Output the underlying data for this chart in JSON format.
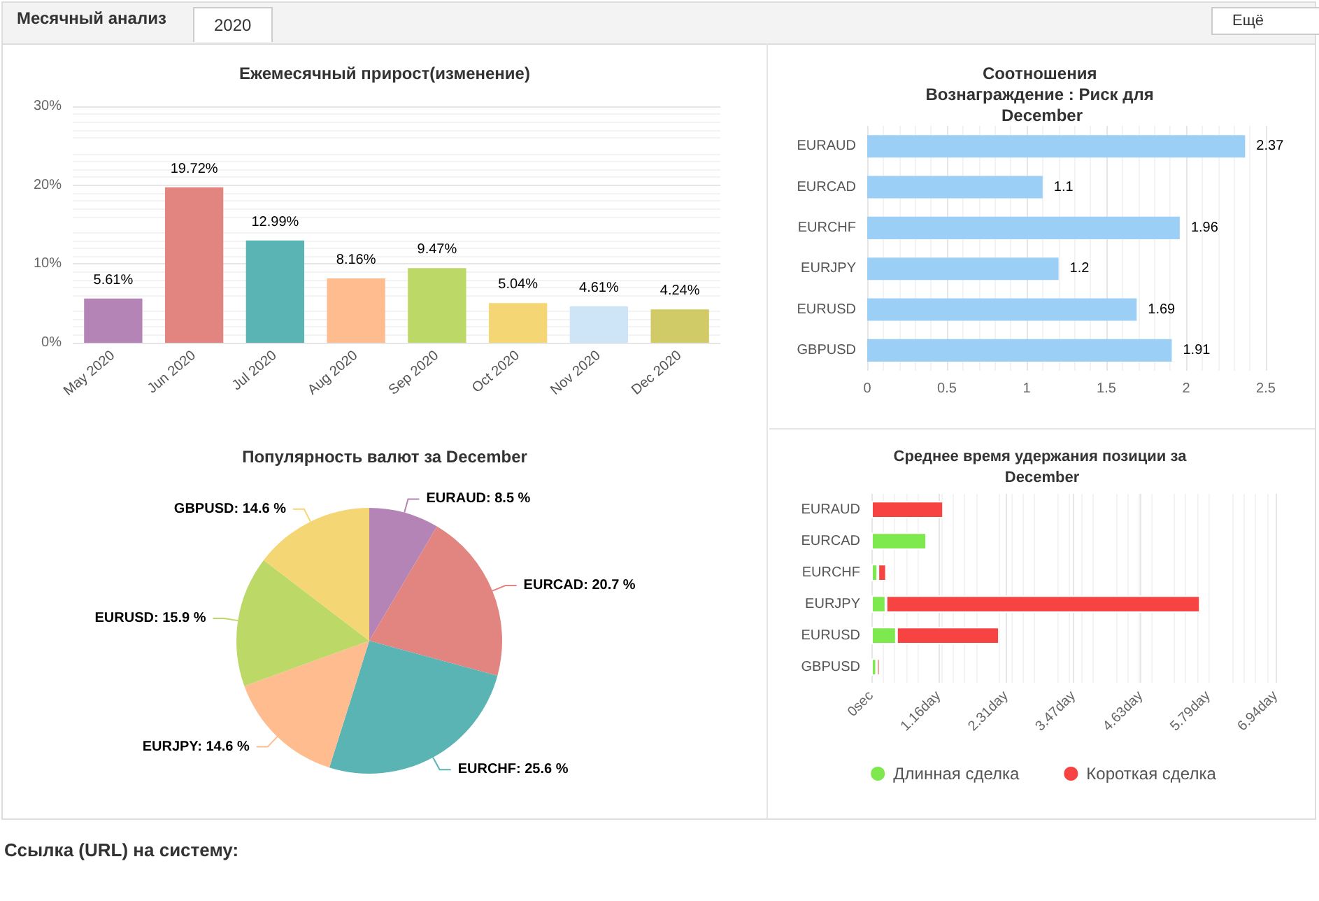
{
  "chart_data": [
    {
      "type": "bar",
      "title": "Ежемесячный прирост(изменение)",
      "annotations": [
        "Месячный анализ",
        "2020",
        "Ещё"
      ],
      "categories": [
        "May 2020",
        "Jun 2020",
        "Jul 2020",
        "Aug 2020",
        "Sep 2020",
        "Oct 2020",
        "Nov 2020",
        "Dec 2020"
      ],
      "values": [
        5.61,
        19.72,
        12.99,
        8.16,
        9.47,
        5.04,
        4.61,
        4.24
      ],
      "value_labels": [
        "5.61%",
        "19.72%",
        "12.99%",
        "8.16%",
        "9.47%",
        "5.04%",
        "4.61%",
        "4.24%"
      ],
      "colors": [
        "#b384b5",
        "#e2847f",
        "#5ab4b3",
        "#ffbc8f",
        "#bcd866",
        "#f5d675",
        "#cde5f7",
        "#d1cb67"
      ],
      "ylim": [
        0,
        30
      ],
      "yticks": [
        {
          "value": 0,
          "label": "0%"
        },
        {
          "value": 10,
          "label": "10%"
        },
        {
          "value": 20,
          "label": "20%"
        },
        {
          "value": 30,
          "label": "30%"
        }
      ],
      "grid": "y",
      "legend": false
    },
    {
      "type": "bar",
      "orientation": "horizontal",
      "title": "Соотношения Вознаграждение : Риск для December",
      "categories": [
        "EURAUD",
        "EURCAD",
        "EURCHF",
        "EURJPY",
        "EURUSD",
        "GBPUSD"
      ],
      "values": [
        2.37,
        1.1,
        1.96,
        1.2,
        1.69,
        1.91
      ],
      "color": "#9ccff5",
      "data_labels": true,
      "xlim": [
        0,
        2.5
      ],
      "xticks": [
        0,
        0.5,
        1,
        1.5,
        2,
        2.5
      ],
      "grid": "x",
      "legend": false
    },
    {
      "type": "pie",
      "title": "Популярность валют за December",
      "categories": [
        "EURAUD",
        "EURCAD",
        "EURCHF",
        "EURJPY",
        "EURUSD",
        "GBPUSD"
      ],
      "values": [
        8.5,
        20.7,
        25.6,
        14.6,
        15.9,
        14.6
      ],
      "value_labels": [
        "8.5 %",
        "20.7 %",
        "25.6 %",
        "14.6 %",
        "15.9 %",
        "14.6 %"
      ],
      "colors": [
        "#b384b5",
        "#e2847f",
        "#5ab4b3",
        "#ffbc8f",
        "#bcd866",
        "#f5d674"
      ],
      "legend": false
    },
    {
      "type": "bar",
      "orientation": "horizontal",
      "stacked": true,
      "title": "Среднее время удержания позиции за December",
      "annotations": [
        "Ссылка (URL) на систему:"
      ],
      "categories": [
        "EURAUD",
        "EURCAD",
        "EURCHF",
        "EURJPY",
        "EURUSD",
        "GBPUSD"
      ],
      "series": [
        {
          "name": "Длинная сделка",
          "color": "#7ee84f",
          "values": [
            null,
            0.95,
            0.11,
            0.25,
            0.43,
            0.09
          ]
        },
        {
          "name": "Короткая сделка",
          "color": "#f84343",
          "values": [
            1.24,
            null,
            0.15,
            5.4,
            1.77,
            0.06
          ]
        }
      ],
      "xlim": [
        0,
        6.944
      ],
      "xticks": [
        {
          "value": 0,
          "label": "0sec"
        },
        {
          "value": 1.157,
          "label": "1.16day"
        },
        {
          "value": 2.315,
          "label": "2.31day"
        },
        {
          "value": 3.472,
          "label": "3.47day"
        },
        {
          "value": 4.63,
          "label": "4.63day"
        },
        {
          "value": 5.787,
          "label": "5.79day"
        },
        {
          "value": 6.944,
          "label": "6.94day"
        }
      ],
      "grid": "x",
      "legend": "bottom"
    }
  ]
}
